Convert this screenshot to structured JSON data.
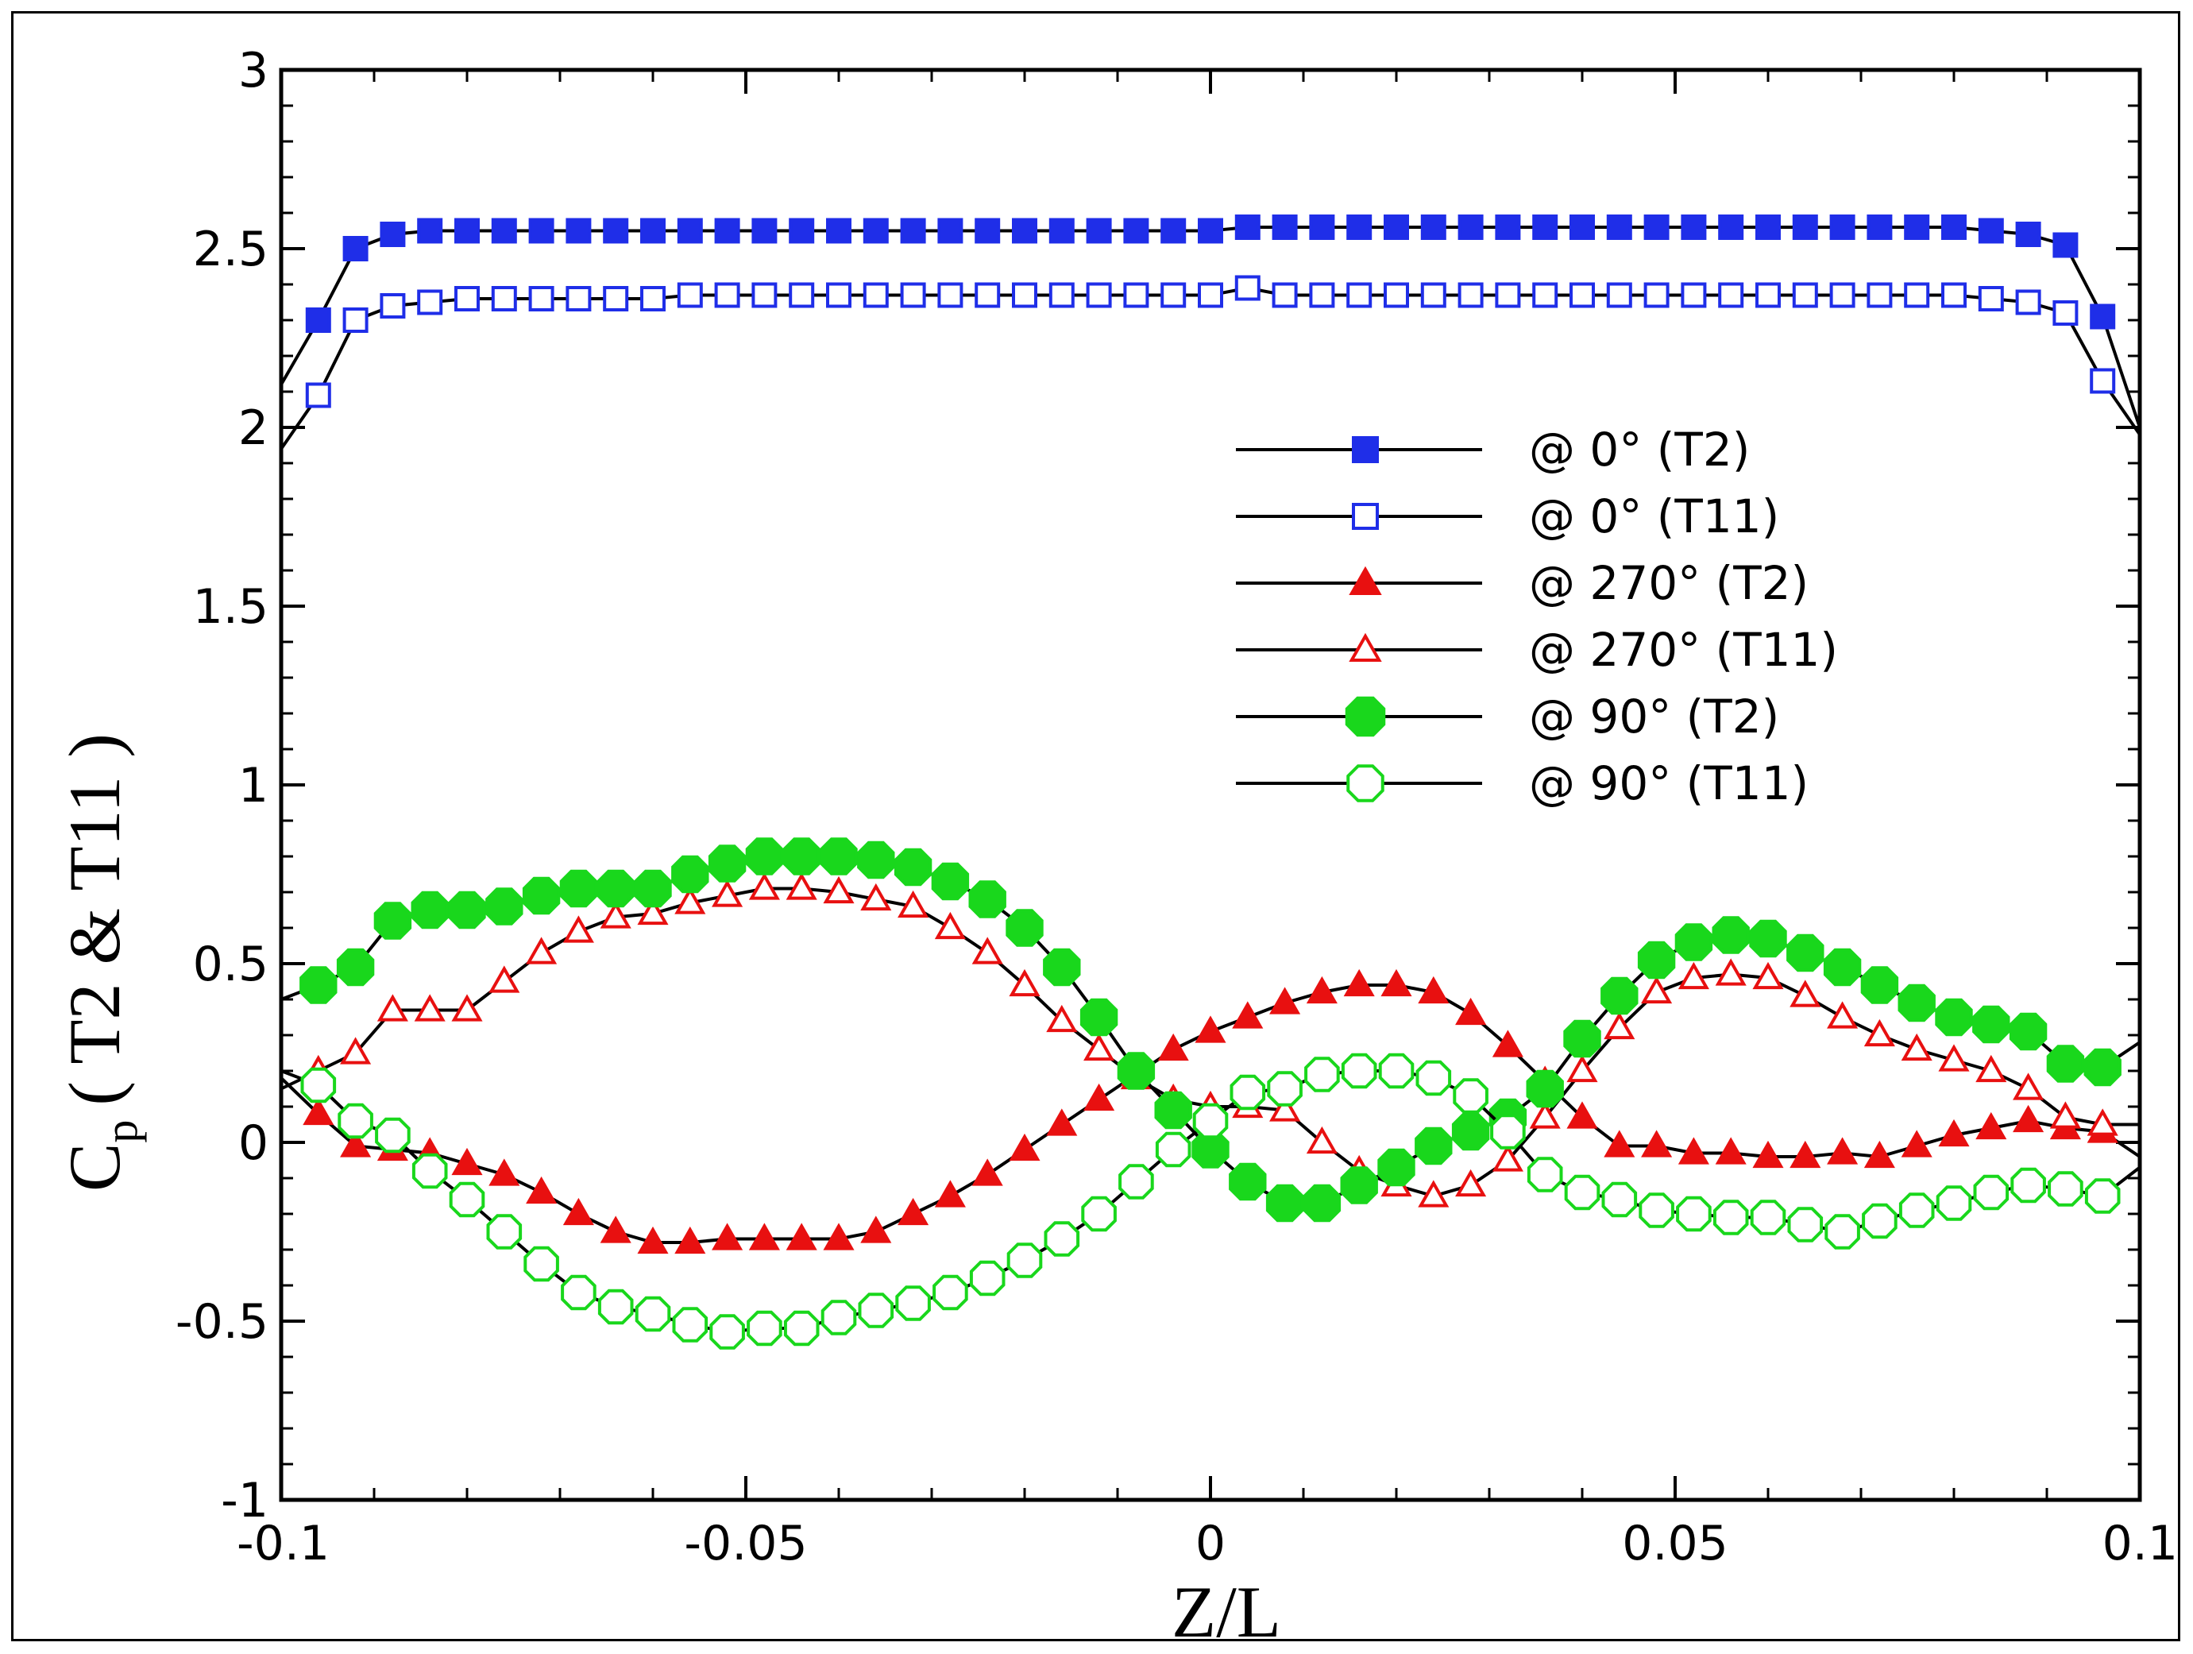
{
  "chart_data": {
    "type": "line",
    "title": "",
    "xlabel": "Z/L",
    "ylabel_main": "C",
    "ylabel_sub": "p",
    "ylabel_rest": "( T2 & T11 )",
    "xlim": [
      -0.1,
      0.1
    ],
    "ylim": [
      -1,
      3
    ],
    "xticks": [
      -0.1,
      -0.05,
      0,
      0.05,
      0.1
    ],
    "xtick_labels": [
      "-0.1",
      "-0.05",
      "0",
      "0.05",
      "0.1"
    ],
    "yticks": [
      -1,
      -0.5,
      0,
      0.5,
      1,
      1.5,
      2,
      2.5,
      3
    ],
    "ytick_labels": [
      "-1",
      "-0.5",
      "0",
      "0.5",
      "1",
      "1.5",
      "2",
      "2.5",
      "3"
    ],
    "legend_position": "center-right",
    "marker_x": [
      -0.096,
      -0.092,
      -0.088,
      -0.084,
      -0.08,
      -0.076,
      -0.072,
      -0.068,
      -0.064,
      -0.06,
      -0.056,
      -0.052,
      -0.048,
      -0.044,
      -0.04,
      -0.036,
      -0.032,
      -0.028,
      -0.024,
      -0.02,
      -0.016,
      -0.012,
      -0.008,
      -0.004,
      0.0,
      0.004,
      0.008,
      0.012,
      0.016,
      0.02,
      0.024,
      0.028,
      0.032,
      0.036,
      0.04,
      0.044,
      0.048,
      0.052,
      0.056,
      0.06,
      0.064,
      0.068,
      0.072,
      0.076,
      0.08,
      0.084,
      0.088,
      0.092,
      0.096
    ],
    "series": [
      {
        "name": "@ 0° (T2)",
        "legend_label": "@ 0° (T2)",
        "color": "#1f2ee8",
        "marker": "square",
        "filled": true,
        "line_start": 2.12,
        "line_end": 2.0,
        "values": [
          2.3,
          2.5,
          2.54,
          2.55,
          2.55,
          2.55,
          2.55,
          2.55,
          2.55,
          2.55,
          2.55,
          2.55,
          2.55,
          2.55,
          2.55,
          2.55,
          2.55,
          2.55,
          2.55,
          2.55,
          2.55,
          2.55,
          2.55,
          2.55,
          2.55,
          2.56,
          2.56,
          2.56,
          2.56,
          2.56,
          2.56,
          2.56,
          2.56,
          2.56,
          2.56,
          2.56,
          2.56,
          2.56,
          2.56,
          2.56,
          2.56,
          2.56,
          2.56,
          2.56,
          2.56,
          2.55,
          2.54,
          2.51,
          2.31
        ]
      },
      {
        "name": "@ 0° (T11)",
        "legend_label": "@ 0° (T11)",
        "color": "#1f2ee8",
        "marker": "square",
        "filled": false,
        "line_start": 1.94,
        "line_end": 1.98,
        "values": [
          2.09,
          2.3,
          2.34,
          2.35,
          2.36,
          2.36,
          2.36,
          2.36,
          2.36,
          2.36,
          2.37,
          2.37,
          2.37,
          2.37,
          2.37,
          2.37,
          2.37,
          2.37,
          2.37,
          2.37,
          2.37,
          2.37,
          2.37,
          2.37,
          2.37,
          2.39,
          2.37,
          2.37,
          2.37,
          2.37,
          2.37,
          2.37,
          2.37,
          2.37,
          2.37,
          2.37,
          2.37,
          2.37,
          2.37,
          2.37,
          2.37,
          2.37,
          2.37,
          2.37,
          2.37,
          2.36,
          2.35,
          2.32,
          2.13
        ]
      },
      {
        "name": "@ 270° (T2)",
        "legend_label": "@ 270° (T2)",
        "color": "#e81010",
        "marker": "triangle",
        "filled": true,
        "line_start": 0.18,
        "line_end": -0.04,
        "values": [
          0.08,
          -0.01,
          -0.02,
          -0.03,
          -0.06,
          -0.09,
          -0.14,
          -0.2,
          -0.25,
          -0.28,
          -0.28,
          -0.27,
          -0.27,
          -0.27,
          -0.27,
          -0.25,
          -0.2,
          -0.15,
          -0.09,
          -0.02,
          0.05,
          0.12,
          0.19,
          0.26,
          0.31,
          0.35,
          0.39,
          0.42,
          0.44,
          0.44,
          0.42,
          0.36,
          0.27,
          0.17,
          0.07,
          -0.01,
          -0.01,
          -0.03,
          -0.03,
          -0.04,
          -0.04,
          -0.03,
          -0.04,
          -0.01,
          0.02,
          0.04,
          0.06,
          0.04,
          0.03
        ]
      },
      {
        "name": "@ 270° (T11)",
        "legend_label": "@ 270° (T11)",
        "color": "#e81010",
        "marker": "triangle",
        "filled": false,
        "line_start": 0.15,
        "line_end": 0.05,
        "values": [
          0.2,
          0.25,
          0.37,
          0.37,
          0.37,
          0.45,
          0.53,
          0.59,
          0.63,
          0.64,
          0.67,
          0.69,
          0.71,
          0.71,
          0.7,
          0.68,
          0.66,
          0.6,
          0.53,
          0.44,
          0.34,
          0.26,
          0.18,
          0.12,
          0.1,
          0.1,
          0.09,
          0.0,
          -0.08,
          -0.12,
          -0.15,
          -0.12,
          -0.05,
          0.07,
          0.2,
          0.32,
          0.42,
          0.46,
          0.47,
          0.46,
          0.41,
          0.35,
          0.3,
          0.26,
          0.23,
          0.2,
          0.15,
          0.07,
          0.05
        ]
      },
      {
        "name": "@ 90° (T2)",
        "legend_label": "@ 90° (T2)",
        "color": "#19d71c",
        "marker": "circle",
        "filled": true,
        "line_start": 0.4,
        "line_end": 0.28,
        "values": [
          0.44,
          0.49,
          0.62,
          0.65,
          0.65,
          0.66,
          0.69,
          0.71,
          0.71,
          0.71,
          0.75,
          0.78,
          0.8,
          0.8,
          0.8,
          0.79,
          0.77,
          0.73,
          0.68,
          0.6,
          0.49,
          0.35,
          0.2,
          0.09,
          -0.02,
          -0.11,
          -0.17,
          -0.17,
          -0.12,
          -0.07,
          -0.01,
          0.03,
          0.07,
          0.15,
          0.29,
          0.41,
          0.51,
          0.56,
          0.58,
          0.57,
          0.53,
          0.49,
          0.44,
          0.39,
          0.35,
          0.33,
          0.31,
          0.22,
          0.21
        ]
      },
      {
        "name": "@ 90° (T11)",
        "legend_label": "@ 90° (T11)",
        "color": "#19d71c",
        "marker": "diamond",
        "filled": false,
        "line_start": 0.2,
        "line_end": -0.07,
        "values": [
          0.16,
          0.06,
          0.02,
          -0.08,
          -0.16,
          -0.25,
          -0.34,
          -0.42,
          -0.46,
          -0.48,
          -0.51,
          -0.53,
          -0.52,
          -0.52,
          -0.49,
          -0.47,
          -0.45,
          -0.42,
          -0.38,
          -0.33,
          -0.27,
          -0.2,
          -0.11,
          -0.02,
          0.06,
          0.14,
          0.15,
          0.19,
          0.2,
          0.2,
          0.18,
          0.13,
          0.03,
          -0.09,
          -0.14,
          -0.16,
          -0.19,
          -0.2,
          -0.21,
          -0.21,
          -0.23,
          -0.25,
          -0.22,
          -0.19,
          -0.17,
          -0.14,
          -0.12,
          -0.13,
          -0.15
        ]
      }
    ]
  }
}
